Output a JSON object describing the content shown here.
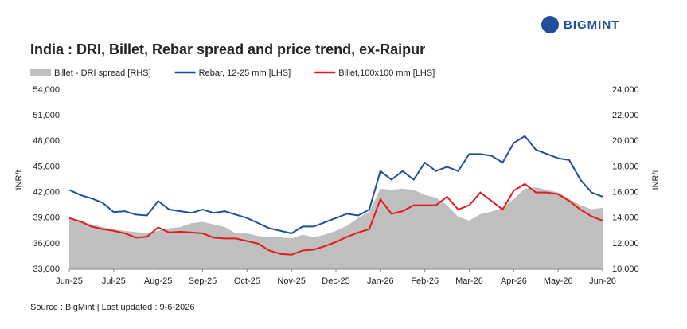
{
  "chart_data": {
    "type": "line",
    "title": "India : DRI, Billet, Rebar spread and price trend, ex-Raipur",
    "logo": "BIGMINT",
    "source": "Source : BigMint | Last updated : 9-6-2026",
    "ylabel": "INR/t",
    "y2label": "INR/t",
    "xlim": [
      0,
      12
    ],
    "xticks": [
      {
        "value": 0,
        "label": "Jun-25"
      },
      {
        "value": 1,
        "label": "Jul-25"
      },
      {
        "value": 2,
        "label": "Aug-25"
      },
      {
        "value": 3,
        "label": "Sep-25"
      },
      {
        "value": 4,
        "label": "Oct-25"
      },
      {
        "value": 5,
        "label": "Nov-25"
      },
      {
        "value": 6,
        "label": "Dec-25"
      },
      {
        "value": 7,
        "label": "Jan-26"
      },
      {
        "value": 8,
        "label": "Feb-26"
      },
      {
        "value": 9,
        "label": "Mar-26"
      },
      {
        "value": 10,
        "label": "Apr-26"
      },
      {
        "value": 11,
        "label": "May-26"
      },
      {
        "value": 12,
        "label": "Jun-26"
      }
    ],
    "ylim": [
      33000,
      54000
    ],
    "yticks": [
      {
        "value": 33000,
        "label": "33,000"
      },
      {
        "value": 36000,
        "label": "36,000"
      },
      {
        "value": 39000,
        "label": "39,000"
      },
      {
        "value": 42000,
        "label": "42,000"
      },
      {
        "value": 45000,
        "label": "45,000"
      },
      {
        "value": 48000,
        "label": "48,000"
      },
      {
        "value": 51000,
        "label": "51,000"
      },
      {
        "value": 54000,
        "label": "54,000"
      }
    ],
    "y2lim": [
      10000,
      24000
    ],
    "y2ticks": [
      {
        "value": 10000,
        "label": "10,000"
      },
      {
        "value": 12000,
        "label": "12,000"
      },
      {
        "value": 14000,
        "label": "14,000"
      },
      {
        "value": 16000,
        "label": "16,000"
      },
      {
        "value": 18000,
        "label": "18,000"
      },
      {
        "value": 20000,
        "label": "20,000"
      },
      {
        "value": 22000,
        "label": "22,000"
      },
      {
        "value": 24000,
        "label": "24,000"
      }
    ],
    "x": [
      0,
      0.25,
      0.5,
      0.75,
      1,
      1.25,
      1.5,
      1.75,
      2,
      2.25,
      2.5,
      2.75,
      3,
      3.25,
      3.5,
      3.75,
      4,
      4.25,
      4.5,
      4.75,
      5,
      5.25,
      5.5,
      5.75,
      6,
      6.25,
      6.5,
      6.75,
      7,
      7.25,
      7.5,
      7.75,
      8,
      8.25,
      8.5,
      8.75,
      9,
      9.25,
      9.5,
      9.75,
      10,
      10.25,
      10.5,
      10.75,
      11,
      11.25,
      11.5,
      11.75,
      12
    ],
    "series": [
      {
        "name": "Billet - DRI spread  [RHS]",
        "color": "#bfbfbf",
        "axis": "y2",
        "kind": "area",
        "values": [
          14000,
          13800,
          13500,
          13300,
          13100,
          13000,
          12900,
          12800,
          13000,
          13200,
          13300,
          13600,
          13700,
          13500,
          13300,
          12800,
          12800,
          12600,
          12500,
          12500,
          12400,
          12700,
          12500,
          12700,
          13000,
          13400,
          14000,
          14500,
          16300,
          16200,
          16300,
          16200,
          15800,
          15600,
          15000,
          14100,
          13800,
          14300,
          14500,
          14800,
          15500,
          16300,
          16400,
          16200,
          16000,
          15500,
          15000,
          14700,
          14800
        ]
      },
      {
        "name": "Rebar, 12-25 mm [LHS]",
        "color": "#1f4e9c",
        "kind": "line",
        "values": [
          42300,
          41700,
          41300,
          40800,
          39700,
          39800,
          39400,
          39300,
          41000,
          40000,
          39800,
          39600,
          40000,
          39600,
          39800,
          39400,
          39000,
          38400,
          37800,
          37500,
          37200,
          38000,
          38000,
          38500,
          39000,
          39500,
          39300,
          40000,
          44500,
          43500,
          44500,
          43500,
          45500,
          44500,
          45000,
          44500,
          46500,
          46500,
          46300,
          45500,
          47800,
          48600,
          47000,
          46500,
          46000,
          45800,
          43500,
          42000,
          41500
        ]
      },
      {
        "name": "Billet,100x100 mm [LHS]",
        "color": "#e31b1b",
        "kind": "line",
        "values": [
          39000,
          38600,
          38000,
          37700,
          37500,
          37200,
          36700,
          36800,
          37900,
          37300,
          37400,
          37300,
          37200,
          36700,
          36600,
          36600,
          36300,
          36000,
          35200,
          34800,
          34700,
          35200,
          35300,
          35700,
          36200,
          36800,
          37300,
          37700,
          41200,
          39500,
          39800,
          40500,
          40500,
          40500,
          41500,
          40000,
          40500,
          42000,
          41000,
          40000,
          42200,
          43000,
          42000,
          42000,
          41800,
          41000,
          40000,
          39200,
          38700
        ]
      }
    ]
  }
}
